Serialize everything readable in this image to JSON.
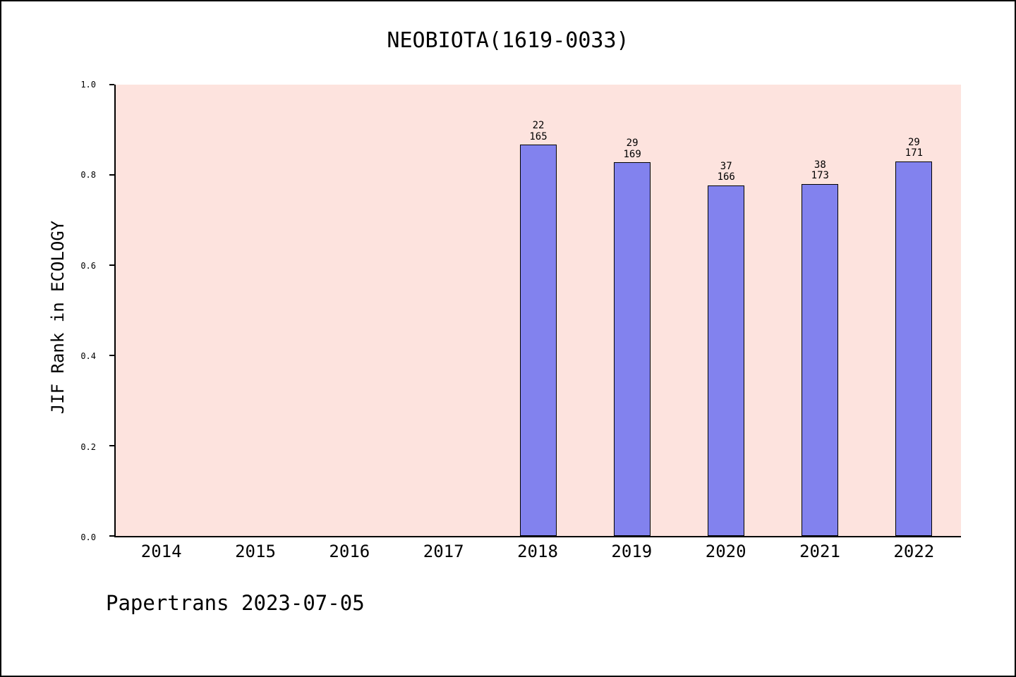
{
  "title": "NEOBIOTA(1619-0033)",
  "footer": "Papertrans 2023-07-05",
  "chart_data": {
    "type": "bar",
    "title": "NEOBIOTA(1619-0033)",
    "xlabel": "",
    "ylabel": "JIF Rank in ECOLOGY",
    "ylim": [
      0.0,
      1.0
    ],
    "yticks": [
      0.0,
      0.2,
      0.4,
      0.6,
      0.8,
      1.0
    ],
    "categories": [
      "2014",
      "2015",
      "2016",
      "2017",
      "2018",
      "2019",
      "2020",
      "2021",
      "2022"
    ],
    "bars": [
      {
        "category": "2018",
        "rank": "22",
        "total": "165",
        "value": 0.867
      },
      {
        "category": "2019",
        "rank": "29",
        "total": "169",
        "value": 0.828
      },
      {
        "category": "2020",
        "rank": "37",
        "total": "166",
        "value": 0.777
      },
      {
        "category": "2021",
        "rank": "38",
        "total": "173",
        "value": 0.78
      },
      {
        "category": "2022",
        "rank": "29",
        "total": "171",
        "value": 0.83
      }
    ],
    "bar_color": "#8282ee",
    "plot_background": "#fde3de",
    "grid": false,
    "legend": "none"
  }
}
